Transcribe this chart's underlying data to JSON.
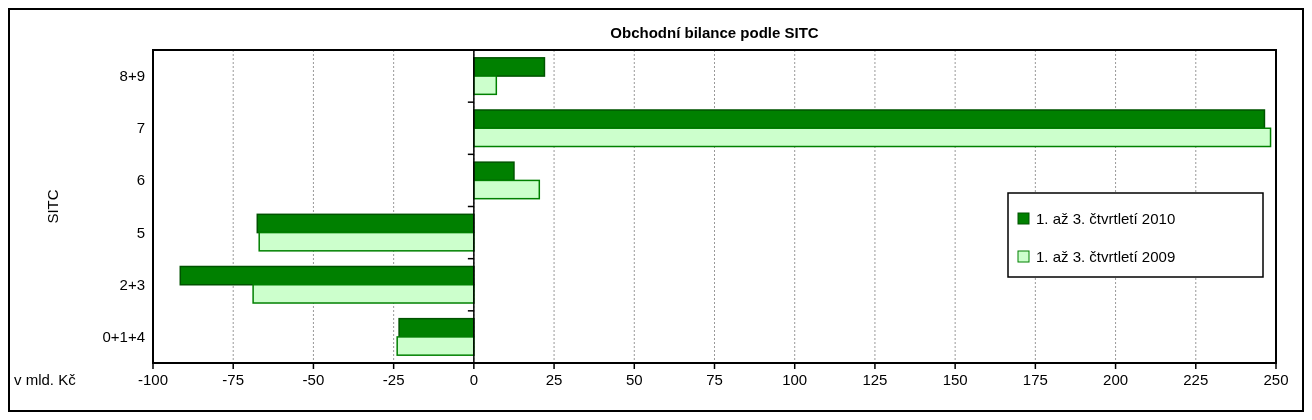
{
  "chart_data": {
    "type": "bar",
    "orientation": "horizontal",
    "title": "Obchodní bilance podle SITC",
    "xlabel": "v mld. Kč",
    "ylabel": "SITC",
    "categories": [
      "8+9",
      "7",
      "6",
      "5",
      "2+3",
      "0+1+4"
    ],
    "series": [
      {
        "name": "1. až 3. čtvrtletí 2010",
        "color": "#008000",
        "values": [
          22,
          246.4,
          12.5,
          -67.5,
          -91.5,
          -23.3
        ]
      },
      {
        "name": "1. až 3. čtvrtletí 2009",
        "color": "#ccffcc",
        "values": [
          7,
          248.3,
          20.4,
          -66.9,
          -68.8,
          -23.9
        ]
      }
    ],
    "xlim": [
      -100,
      250
    ],
    "xticks": [
      -100,
      -75,
      -50,
      -25,
      0,
      25,
      50,
      75,
      100,
      125,
      150,
      175,
      200,
      225,
      250
    ],
    "grid": "x",
    "legend": "right"
  }
}
